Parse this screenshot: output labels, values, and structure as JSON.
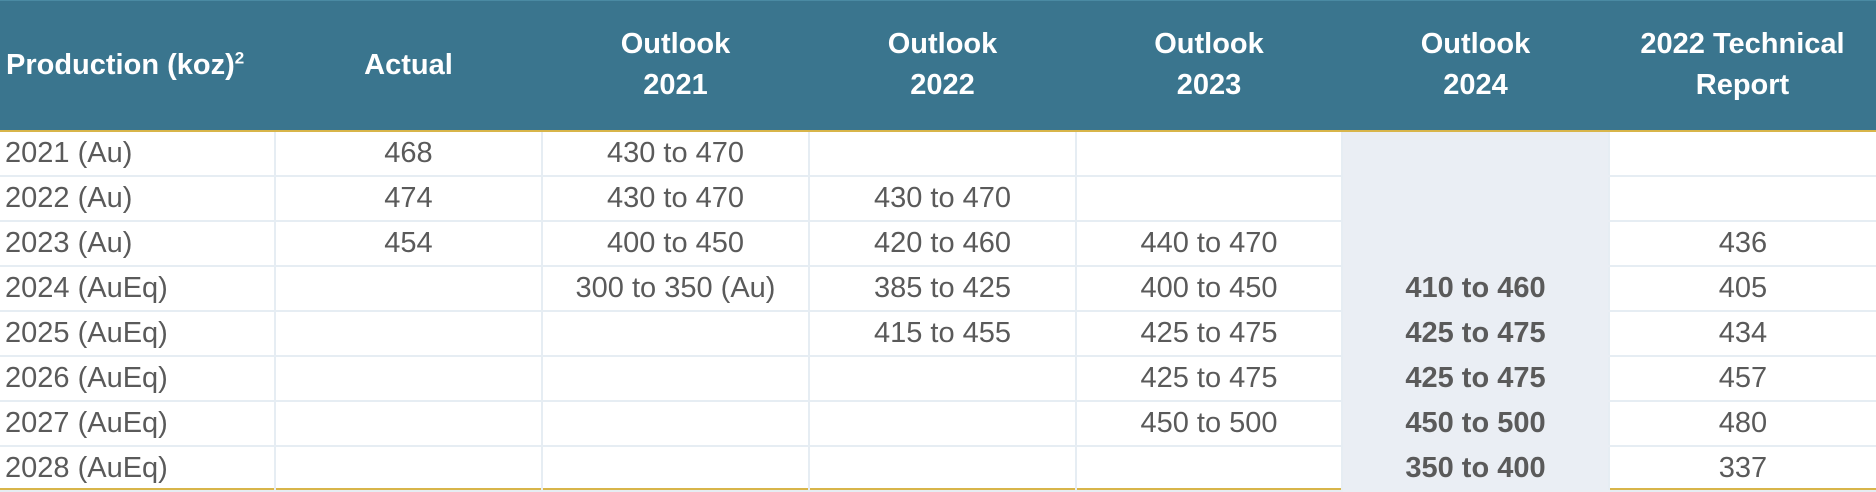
{
  "headers": {
    "production_label": "Production (koz)",
    "production_sup": "2",
    "actual": "Actual",
    "outlook2021_l1": "Outlook",
    "outlook2021_l2": "2021",
    "outlook2022_l1": "Outlook",
    "outlook2022_l2": "2022",
    "outlook2023_l1": "Outlook",
    "outlook2023_l2": "2023",
    "outlook2024_l1": "Outlook",
    "outlook2024_l2": "2024",
    "tech_l1": "2022 Technical",
    "tech_l2": "Report"
  },
  "rows": [
    [
      "2021 (Au)",
      "468",
      "430 to 470",
      "",
      "",
      "",
      ""
    ],
    [
      "2022 (Au)",
      "474",
      "430 to 470",
      "430 to 470",
      "",
      "",
      ""
    ],
    [
      "2023 (Au)",
      "454",
      "400 to 450",
      "420 to 460",
      "440 to 470",
      "",
      "436"
    ],
    [
      "2024 (AuEq)",
      "",
      "300 to 350 (Au)",
      "385 to 425",
      "400 to 450",
      "410 to 460",
      "405"
    ],
    [
      "2025 (AuEq)",
      "",
      "",
      "415 to 455",
      "425 to 475",
      "425 to 475",
      "434"
    ],
    [
      "2026 (AuEq)",
      "",
      "",
      "",
      "425 to 475",
      "425 to 475",
      "457"
    ],
    [
      "2027 (AuEq)",
      "",
      "",
      "",
      "450 to 500",
      "450 to 500",
      "480"
    ],
    [
      "2028 (AuEq)",
      "",
      "",
      "",
      "",
      "350 to 400",
      "337"
    ]
  ],
  "colors": {
    "header_bg": "#3a758e",
    "header_text": "#ffffff",
    "accent_border": "#d8b54a",
    "highlight_column_bg": "#eaeef4",
    "body_text": "#5a5a5a"
  }
}
